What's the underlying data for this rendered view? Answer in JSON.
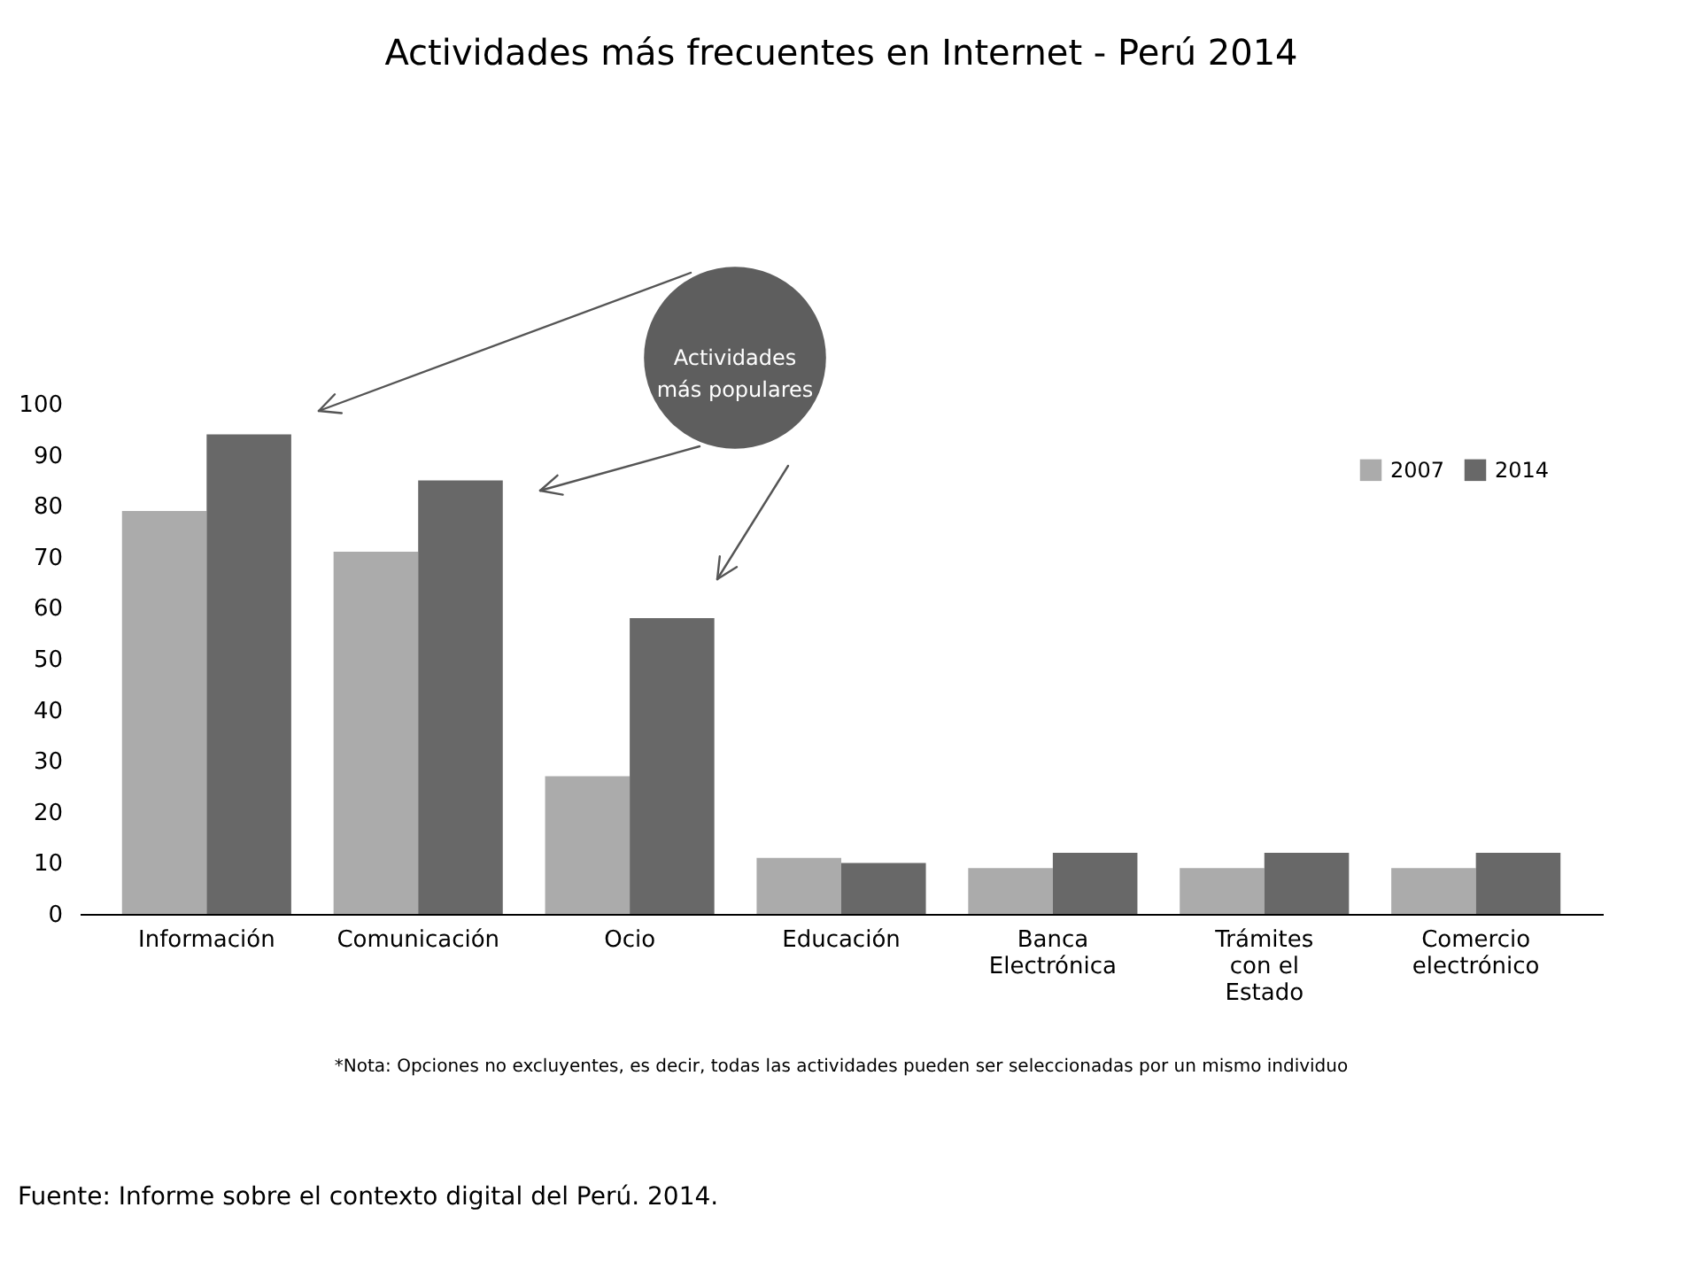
{
  "chart_data": {
    "type": "bar",
    "title": "Actividades más frecuentes en Internet - Perú 2014",
    "categories": [
      "Información",
      "Comunicación",
      "Ocio",
      "Educación",
      "Banca Electrónica",
      "Trámites con el Estado",
      "Comercio electrónico"
    ],
    "series": [
      {
        "name": "2007",
        "color": "#ababab",
        "values": [
          79,
          71,
          27,
          11,
          9,
          9,
          9
        ]
      },
      {
        "name": "2014",
        "color": "#686868",
        "values": [
          94,
          85,
          58,
          10,
          12,
          12,
          12
        ]
      }
    ],
    "ylim": [
      0,
      100
    ],
    "yticks": [
      0,
      10,
      20,
      30,
      40,
      50,
      60,
      70,
      80,
      90,
      100
    ],
    "grid": false,
    "legend": "top right",
    "annotations": [
      "Actividades más populares",
      "*Nota: Opciones no excluyentes, es decir, todas las actividades pueden ser seleccionadas por un mismo individuo",
      "Fuente: Informe sobre el contexto digital del Perú. 2014."
    ]
  }
}
